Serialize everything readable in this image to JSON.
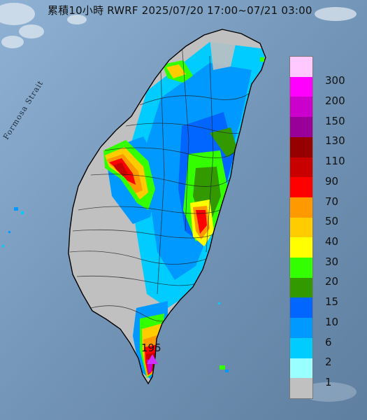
{
  "title": "累積10小時 RWRF 2025/07/20 17:00~07/21 03:00",
  "sea_label": "Formosa Strait",
  "max_value_label": "195",
  "legend": [
    {
      "label": "300",
      "color": "#ffc8ff"
    },
    {
      "label": "200",
      "color": "#ff00ff"
    },
    {
      "label": "150",
      "color": "#cc00cc"
    },
    {
      "label": "130",
      "color": "#990099"
    },
    {
      "label": "110",
      "color": "#960000"
    },
    {
      "label": "90",
      "color": "#c80000"
    },
    {
      "label": "70",
      "color": "#ff0000"
    },
    {
      "label": "50",
      "color": "#ff9900"
    },
    {
      "label": "40",
      "color": "#ffcc00"
    },
    {
      "label": "30",
      "color": "#ffff00"
    },
    {
      "label": "20",
      "color": "#33ff00"
    },
    {
      "label": "15",
      "color": "#339900"
    },
    {
      "label": "10",
      "color": "#0066ff"
    },
    {
      "label": "6",
      "color": "#0099ff"
    },
    {
      "label": "2",
      "color": "#00ccff"
    },
    {
      "label": "1",
      "color": "#99ffff"
    },
    {
      "label": "",
      "color": "#c0c0c0"
    }
  ]
}
